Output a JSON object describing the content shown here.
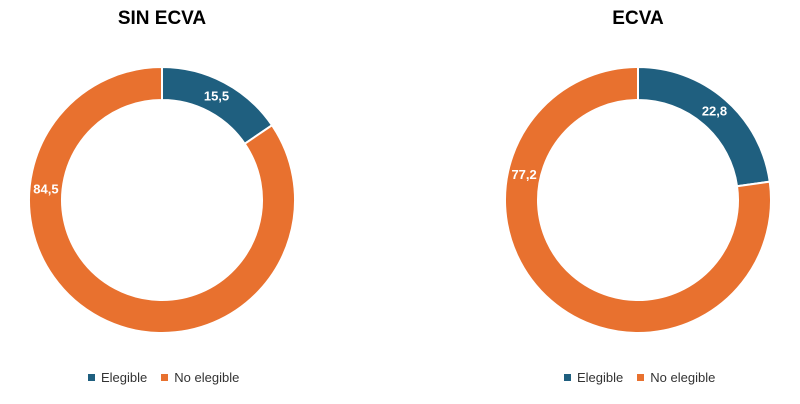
{
  "colors": {
    "elegible": "#1f5f7f",
    "no_elegible": "#e8712f"
  },
  "chart_data": [
    {
      "type": "pie",
      "title": "SIN ECVA",
      "categories": [
        "Elegible",
        "No elegible"
      ],
      "values": [
        15.5,
        84.5
      ],
      "labels": [
        "15,5",
        "84,5"
      ],
      "legend": "bottom"
    },
    {
      "type": "pie",
      "title": "ECVA",
      "categories": [
        "Elegible",
        "No elegible"
      ],
      "values": [
        22.8,
        77.2
      ],
      "labels": [
        "22,8",
        "77,2"
      ],
      "legend": "bottom"
    }
  ]
}
